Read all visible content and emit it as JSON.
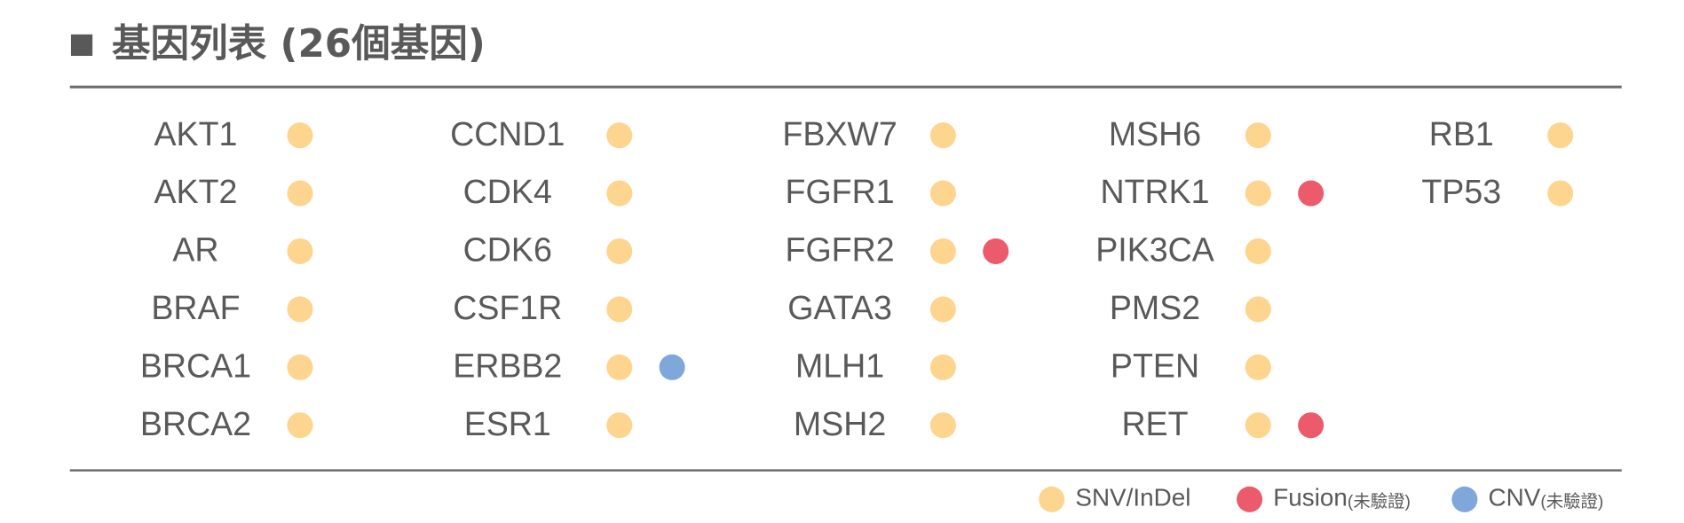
{
  "title": "基因列表 (26個基因)",
  "columns": [
    [
      {
        "name": "AKT1",
        "marks": [
          0
        ]
      },
      {
        "name": "AKT2",
        "marks": [
          0
        ]
      },
      {
        "name": "AR",
        "marks": [
          0
        ]
      },
      {
        "name": "BRAF",
        "marks": [
          0
        ]
      },
      {
        "name": "BRCA1",
        "marks": [
          0
        ]
      },
      {
        "name": "BRCA2",
        "marks": [
          0
        ]
      }
    ],
    [
      {
        "name": "CCND1",
        "marks": [
          0
        ]
      },
      {
        "name": "CDK4",
        "marks": [
          0
        ]
      },
      {
        "name": "CDK6",
        "marks": [
          0
        ]
      },
      {
        "name": "CSF1R",
        "marks": [
          0
        ]
      },
      {
        "name": "ERBB2",
        "marks": [
          0,
          2
        ]
      },
      {
        "name": "ESR1",
        "marks": [
          0
        ]
      }
    ],
    [
      {
        "name": "FBXW7",
        "marks": [
          0
        ]
      },
      {
        "name": "FGFR1",
        "marks": [
          0
        ]
      },
      {
        "name": "FGFR2",
        "marks": [
          0,
          1
        ]
      },
      {
        "name": "GATA3",
        "marks": [
          0
        ]
      },
      {
        "name": "MLH1",
        "marks": [
          0
        ]
      },
      {
        "name": "MSH2",
        "marks": [
          0
        ]
      }
    ],
    [
      {
        "name": "MSH6",
        "marks": [
          0
        ]
      },
      {
        "name": "NTRK1",
        "marks": [
          0,
          1
        ]
      },
      {
        "name": "PIK3CA",
        "marks": [
          0
        ]
      },
      {
        "name": "PMS2",
        "marks": [
          0
        ]
      },
      {
        "name": "PTEN",
        "marks": [
          0
        ]
      },
      {
        "name": "RET",
        "marks": [
          0,
          1
        ]
      }
    ],
    [
      {
        "name": "RB1",
        "marks": [
          0
        ]
      },
      {
        "name": "TP53",
        "marks": [
          0
        ]
      }
    ]
  ],
  "legend": [
    {
      "label": "SNV/InDel",
      "color": "#fdd58f"
    },
    {
      "label": "Fusion",
      "note": "(未驗證)",
      "color": "#eb5b6b"
    },
    {
      "label": "CNV",
      "note": "(未驗證)",
      "color": "#80a7da"
    }
  ]
}
